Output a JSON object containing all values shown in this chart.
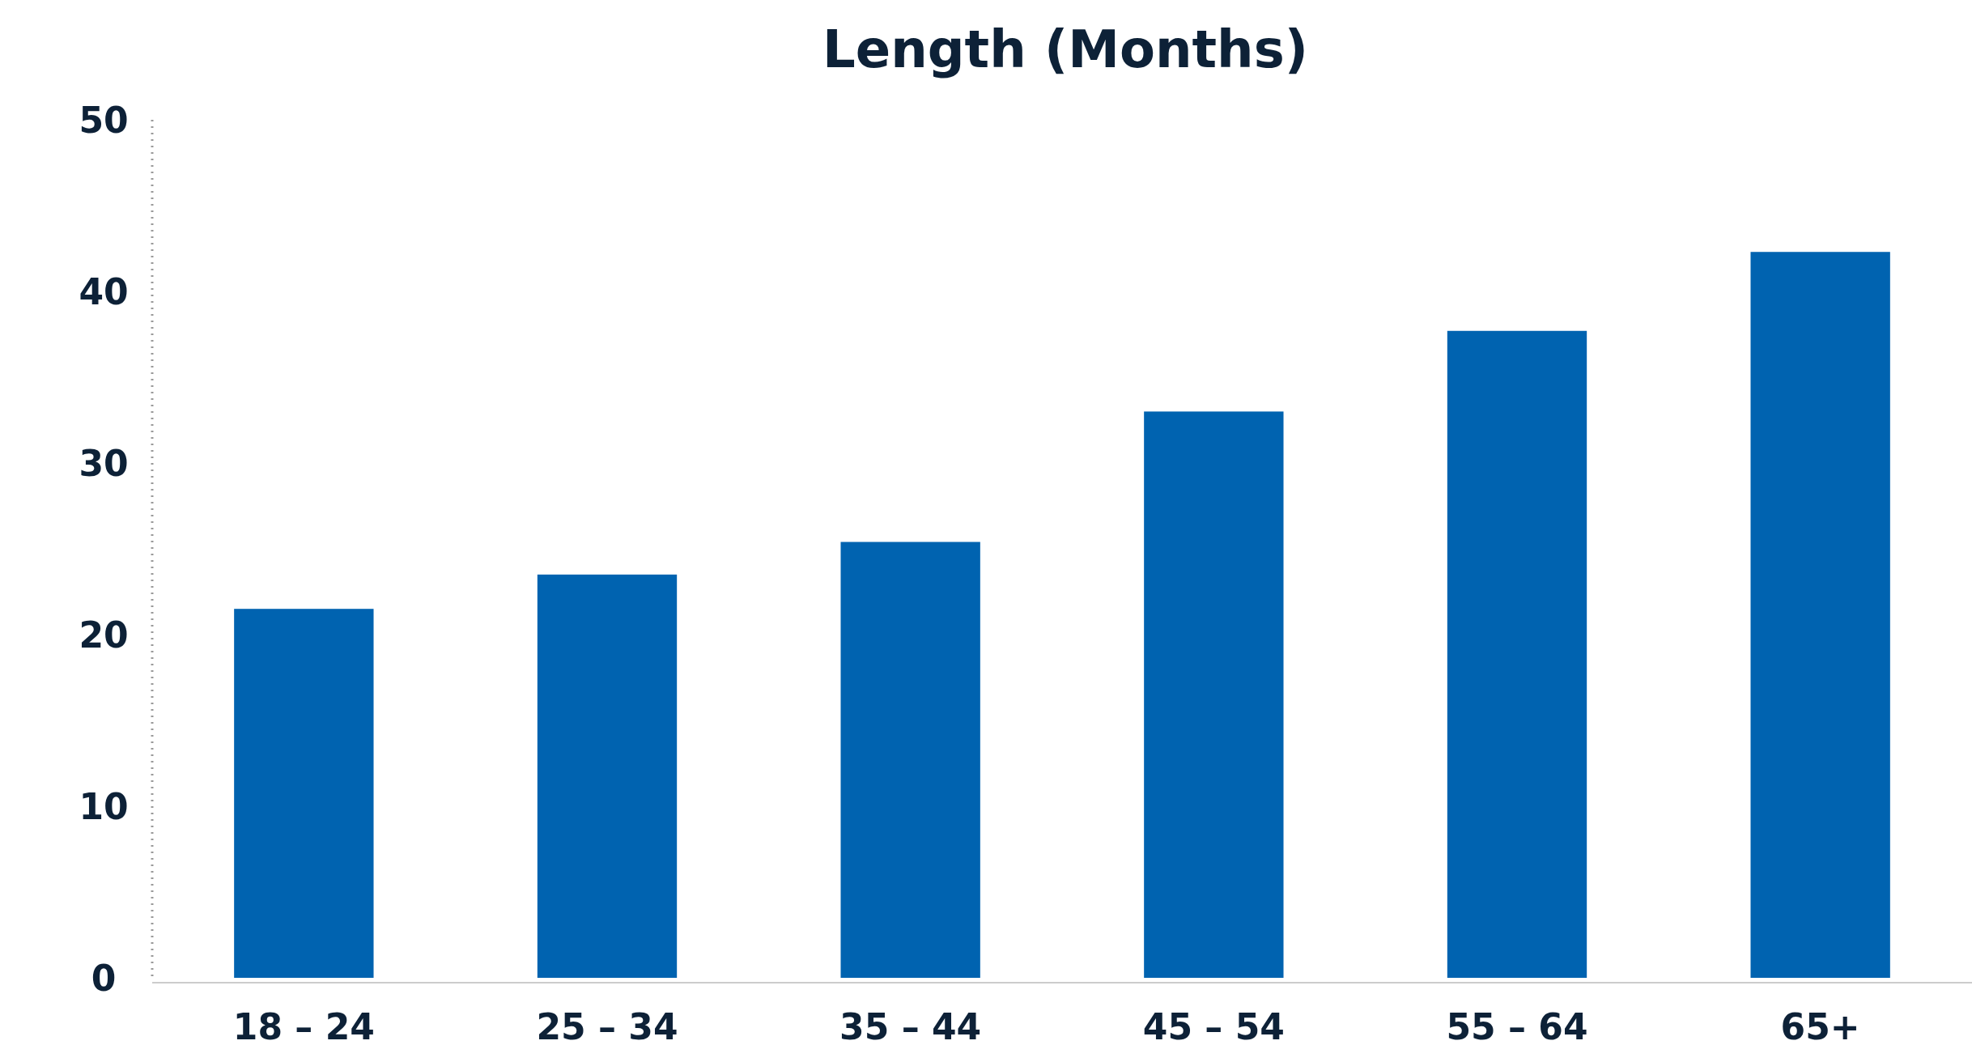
{
  "chart_data": {
    "type": "bar",
    "title": "Length (Months)",
    "categories": [
      "18 – 24",
      "25 – 34",
      "35 – 44",
      "45 – 54",
      "55 – 64",
      "65+"
    ],
    "values": [
      21.5,
      23.5,
      25.4,
      33,
      37.7,
      42.3
    ],
    "color": "#0063b0",
    "ylim": [
      0,
      50
    ],
    "yticks": [
      0,
      10,
      20,
      30,
      40,
      50
    ],
    "grid": false
  }
}
